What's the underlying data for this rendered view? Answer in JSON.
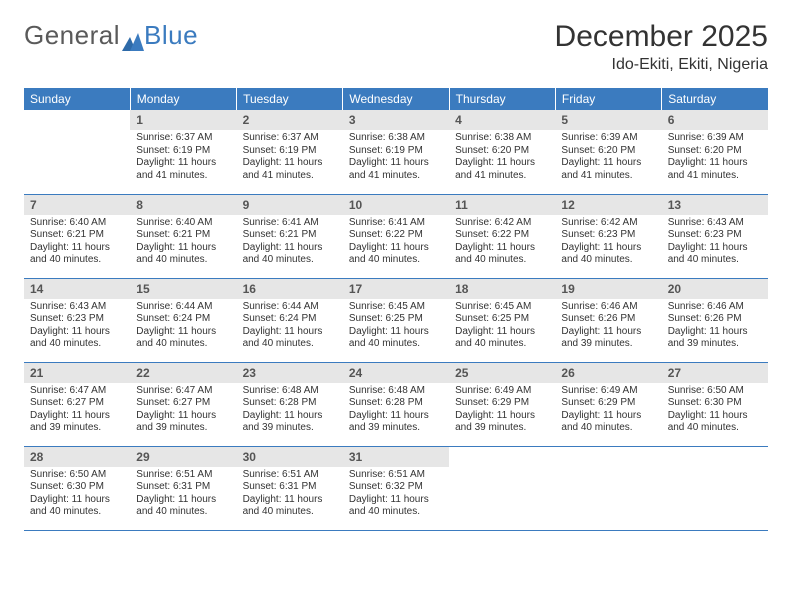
{
  "brand": {
    "part1": "General",
    "part2": "Blue"
  },
  "header": {
    "month_title": "December 2025",
    "location": "Ido-Ekiti, Ekiti, Nigeria"
  },
  "colors": {
    "accent": "#3b7bbf",
    "daynum_bg": "#e6e6e6",
    "text": "#333333",
    "bg": "#ffffff"
  },
  "day_names": [
    "Sunday",
    "Monday",
    "Tuesday",
    "Wednesday",
    "Thursday",
    "Friday",
    "Saturday"
  ],
  "weeks": [
    [
      null,
      {
        "n": "1",
        "sunrise": "6:37 AM",
        "sunset": "6:19 PM",
        "dl1": "Daylight: 11 hours",
        "dl2": "and 41 minutes."
      },
      {
        "n": "2",
        "sunrise": "6:37 AM",
        "sunset": "6:19 PM",
        "dl1": "Daylight: 11 hours",
        "dl2": "and 41 minutes."
      },
      {
        "n": "3",
        "sunrise": "6:38 AM",
        "sunset": "6:19 PM",
        "dl1": "Daylight: 11 hours",
        "dl2": "and 41 minutes."
      },
      {
        "n": "4",
        "sunrise": "6:38 AM",
        "sunset": "6:20 PM",
        "dl1": "Daylight: 11 hours",
        "dl2": "and 41 minutes."
      },
      {
        "n": "5",
        "sunrise": "6:39 AM",
        "sunset": "6:20 PM",
        "dl1": "Daylight: 11 hours",
        "dl2": "and 41 minutes."
      },
      {
        "n": "6",
        "sunrise": "6:39 AM",
        "sunset": "6:20 PM",
        "dl1": "Daylight: 11 hours",
        "dl2": "and 41 minutes."
      }
    ],
    [
      {
        "n": "7",
        "sunrise": "6:40 AM",
        "sunset": "6:21 PM",
        "dl1": "Daylight: 11 hours",
        "dl2": "and 40 minutes."
      },
      {
        "n": "8",
        "sunrise": "6:40 AM",
        "sunset": "6:21 PM",
        "dl1": "Daylight: 11 hours",
        "dl2": "and 40 minutes."
      },
      {
        "n": "9",
        "sunrise": "6:41 AM",
        "sunset": "6:21 PM",
        "dl1": "Daylight: 11 hours",
        "dl2": "and 40 minutes."
      },
      {
        "n": "10",
        "sunrise": "6:41 AM",
        "sunset": "6:22 PM",
        "dl1": "Daylight: 11 hours",
        "dl2": "and 40 minutes."
      },
      {
        "n": "11",
        "sunrise": "6:42 AM",
        "sunset": "6:22 PM",
        "dl1": "Daylight: 11 hours",
        "dl2": "and 40 minutes."
      },
      {
        "n": "12",
        "sunrise": "6:42 AM",
        "sunset": "6:23 PM",
        "dl1": "Daylight: 11 hours",
        "dl2": "and 40 minutes."
      },
      {
        "n": "13",
        "sunrise": "6:43 AM",
        "sunset": "6:23 PM",
        "dl1": "Daylight: 11 hours",
        "dl2": "and 40 minutes."
      }
    ],
    [
      {
        "n": "14",
        "sunrise": "6:43 AM",
        "sunset": "6:23 PM",
        "dl1": "Daylight: 11 hours",
        "dl2": "and 40 minutes."
      },
      {
        "n": "15",
        "sunrise": "6:44 AM",
        "sunset": "6:24 PM",
        "dl1": "Daylight: 11 hours",
        "dl2": "and 40 minutes."
      },
      {
        "n": "16",
        "sunrise": "6:44 AM",
        "sunset": "6:24 PM",
        "dl1": "Daylight: 11 hours",
        "dl2": "and 40 minutes."
      },
      {
        "n": "17",
        "sunrise": "6:45 AM",
        "sunset": "6:25 PM",
        "dl1": "Daylight: 11 hours",
        "dl2": "and 40 minutes."
      },
      {
        "n": "18",
        "sunrise": "6:45 AM",
        "sunset": "6:25 PM",
        "dl1": "Daylight: 11 hours",
        "dl2": "and 40 minutes."
      },
      {
        "n": "19",
        "sunrise": "6:46 AM",
        "sunset": "6:26 PM",
        "dl1": "Daylight: 11 hours",
        "dl2": "and 39 minutes."
      },
      {
        "n": "20",
        "sunrise": "6:46 AM",
        "sunset": "6:26 PM",
        "dl1": "Daylight: 11 hours",
        "dl2": "and 39 minutes."
      }
    ],
    [
      {
        "n": "21",
        "sunrise": "6:47 AM",
        "sunset": "6:27 PM",
        "dl1": "Daylight: 11 hours",
        "dl2": "and 39 minutes."
      },
      {
        "n": "22",
        "sunrise": "6:47 AM",
        "sunset": "6:27 PM",
        "dl1": "Daylight: 11 hours",
        "dl2": "and 39 minutes."
      },
      {
        "n": "23",
        "sunrise": "6:48 AM",
        "sunset": "6:28 PM",
        "dl1": "Daylight: 11 hours",
        "dl2": "and 39 minutes."
      },
      {
        "n": "24",
        "sunrise": "6:48 AM",
        "sunset": "6:28 PM",
        "dl1": "Daylight: 11 hours",
        "dl2": "and 39 minutes."
      },
      {
        "n": "25",
        "sunrise": "6:49 AM",
        "sunset": "6:29 PM",
        "dl1": "Daylight: 11 hours",
        "dl2": "and 39 minutes."
      },
      {
        "n": "26",
        "sunrise": "6:49 AM",
        "sunset": "6:29 PM",
        "dl1": "Daylight: 11 hours",
        "dl2": "and 40 minutes."
      },
      {
        "n": "27",
        "sunrise": "6:50 AM",
        "sunset": "6:30 PM",
        "dl1": "Daylight: 11 hours",
        "dl2": "and 40 minutes."
      }
    ],
    [
      {
        "n": "28",
        "sunrise": "6:50 AM",
        "sunset": "6:30 PM",
        "dl1": "Daylight: 11 hours",
        "dl2": "and 40 minutes."
      },
      {
        "n": "29",
        "sunrise": "6:51 AM",
        "sunset": "6:31 PM",
        "dl1": "Daylight: 11 hours",
        "dl2": "and 40 minutes."
      },
      {
        "n": "30",
        "sunrise": "6:51 AM",
        "sunset": "6:31 PM",
        "dl1": "Daylight: 11 hours",
        "dl2": "and 40 minutes."
      },
      {
        "n": "31",
        "sunrise": "6:51 AM",
        "sunset": "6:32 PM",
        "dl1": "Daylight: 11 hours",
        "dl2": "and 40 minutes."
      },
      null,
      null,
      null
    ]
  ],
  "labels": {
    "sunrise_prefix": "Sunrise: ",
    "sunset_prefix": "Sunset: "
  }
}
